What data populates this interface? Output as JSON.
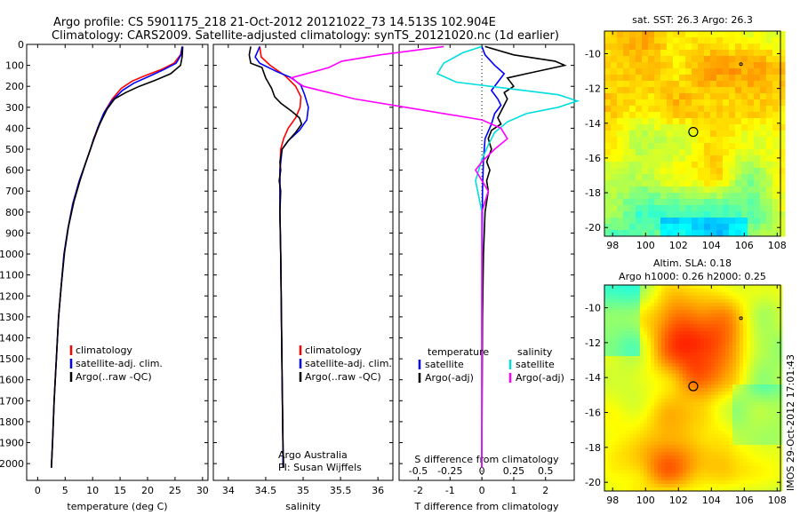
{
  "header": {
    "title_line1": "Argo profile: CS 5901175_218 21-Oct-2012 20121022_73 14.513S 102.904E",
    "title_line2": "Climatology: CARS2009. Satellite-adjusted climatology: synTS_20121020.nc (1d earlier)"
  },
  "colors": {
    "climatology": "#ff0000",
    "satellite": "#0000ff",
    "argo": "#000000",
    "sat_diff": "#00dddd",
    "argo_diff": "#ff00ff"
  },
  "watermark": "IMOS 29-Oct-2012 17:01:43",
  "chart_data": [
    {
      "type": "line",
      "name": "temperature-profile",
      "xlabel": "temperature (deg C)",
      "ylabel": "",
      "xlim": [
        -2,
        31
      ],
      "ylim": [
        2080,
        0
      ],
      "xticks": [
        0,
        5,
        10,
        15,
        20,
        25,
        30
      ],
      "yticks": [
        0,
        100,
        200,
        300,
        400,
        500,
        600,
        700,
        800,
        900,
        1000,
        1100,
        1200,
        1300,
        1400,
        1500,
        1600,
        1700,
        1800,
        1900,
        2000
      ],
      "legend": [
        "climatology",
        "satellite-adj. clim.",
        "Argo(..raw -QC)"
      ],
      "series": [
        {
          "name": "climatology",
          "color": "#ff0000",
          "points": [
            [
              26.3,
              10
            ],
            [
              26.0,
              50
            ],
            [
              24.8,
              90
            ],
            [
              22.5,
              120
            ],
            [
              19.5,
              150
            ],
            [
              17.2,
              175
            ],
            [
              15.2,
              210
            ],
            [
              13.6,
              260
            ],
            [
              12.2,
              320
            ],
            [
              11.0,
              400
            ],
            [
              10.0,
              470
            ],
            [
              8.8,
              560
            ],
            [
              7.6,
              650
            ],
            [
              6.4,
              760
            ],
            [
              5.5,
              880
            ],
            [
              4.8,
              1000
            ],
            [
              4.3,
              1150
            ],
            [
              3.8,
              1300
            ],
            [
              3.4,
              1500
            ],
            [
              3.0,
              1700
            ],
            [
              2.7,
              1900
            ],
            [
              2.5,
              2020
            ]
          ]
        },
        {
          "name": "satellite-adj. clim.",
          "color": "#0000ff",
          "points": [
            [
              26.3,
              10
            ],
            [
              26.1,
              50
            ],
            [
              25.2,
              90
            ],
            [
              23.0,
              120
            ],
            [
              20.5,
              150
            ],
            [
              17.5,
              185
            ],
            [
              15.4,
              220
            ],
            [
              13.5,
              270
            ],
            [
              12.0,
              330
            ],
            [
              10.9,
              400
            ],
            [
              10.0,
              470
            ],
            [
              8.8,
              560
            ],
            [
              7.6,
              650
            ],
            [
              6.4,
              760
            ],
            [
              5.5,
              880
            ],
            [
              4.8,
              1000
            ],
            [
              4.3,
              1150
            ],
            [
              3.8,
              1300
            ],
            [
              3.4,
              1500
            ],
            [
              3.0,
              1700
            ],
            [
              2.7,
              1900
            ],
            [
              2.5,
              2020
            ]
          ]
        },
        {
          "name": "Argo(..raw -QC)",
          "color": "#000000",
          "points": [
            [
              26.4,
              10
            ],
            [
              26.3,
              60
            ],
            [
              26.0,
              100
            ],
            [
              24.2,
              140
            ],
            [
              21.5,
              170
            ],
            [
              18.5,
              200
            ],
            [
              16.0,
              230
            ],
            [
              14.0,
              260
            ],
            [
              12.6,
              310
            ],
            [
              11.3,
              380
            ],
            [
              10.2,
              450
            ],
            [
              9.6,
              500
            ],
            [
              8.8,
              560
            ],
            [
              7.7,
              650
            ],
            [
              6.6,
              750
            ],
            [
              5.6,
              870
            ],
            [
              4.9,
              990
            ],
            [
              4.3,
              1150
            ],
            [
              3.8,
              1300
            ],
            [
              3.4,
              1500
            ],
            [
              3.0,
              1700
            ],
            [
              2.7,
              1900
            ],
            [
              2.5,
              2020
            ]
          ]
        }
      ],
      "annotations": []
    },
    {
      "type": "line",
      "name": "salinity-profile",
      "xlabel": "salinity",
      "ylabel": "",
      "xlim": [
        33.8,
        36.2
      ],
      "ylim": [
        2080,
        0
      ],
      "xticks": [
        34,
        34.5,
        35,
        35.5,
        36
      ],
      "legend": [
        "climatology",
        "satellite-adj. clim.",
        "Argo(..raw -QC)"
      ],
      "series": [
        {
          "name": "climatology",
          "color": "#ff0000",
          "points": [
            [
              34.42,
              10
            ],
            [
              34.44,
              60
            ],
            [
              34.56,
              100
            ],
            [
              34.76,
              150
            ],
            [
              34.9,
              200
            ],
            [
              34.97,
              250
            ],
            [
              34.96,
              300
            ],
            [
              34.9,
              350
            ],
            [
              34.8,
              400
            ],
            [
              34.74,
              450
            ],
            [
              34.7,
              500
            ],
            [
              34.69,
              600
            ],
            [
              34.69,
              800
            ],
            [
              34.7,
              1000
            ],
            [
              34.71,
              1300
            ],
            [
              34.72,
              1600
            ],
            [
              34.73,
              1900
            ],
            [
              34.73,
              2020
            ]
          ]
        },
        {
          "name": "satellite-adj. clim.",
          "color": "#0000ff",
          "points": [
            [
              34.42,
              10
            ],
            [
              34.36,
              60
            ],
            [
              34.42,
              90
            ],
            [
              34.65,
              130
            ],
            [
              34.85,
              160
            ],
            [
              34.97,
              195
            ],
            [
              35.02,
              240
            ],
            [
              35.07,
              300
            ],
            [
              35.05,
              360
            ],
            [
              34.95,
              410
            ],
            [
              34.8,
              460
            ],
            [
              34.72,
              500
            ],
            [
              34.69,
              600
            ],
            [
              34.69,
              800
            ],
            [
              34.7,
              1000
            ],
            [
              34.71,
              1300
            ],
            [
              34.72,
              1600
            ],
            [
              34.73,
              1900
            ],
            [
              34.73,
              2020
            ]
          ]
        },
        {
          "name": "Argo(..raw -QC)",
          "color": "#000000",
          "points": [
            [
              34.3,
              10
            ],
            [
              34.28,
              50
            ],
            [
              34.3,
              90
            ],
            [
              34.45,
              110
            ],
            [
              34.5,
              160
            ],
            [
              34.58,
              210
            ],
            [
              34.62,
              250
            ],
            [
              34.7,
              280
            ],
            [
              34.85,
              320
            ],
            [
              34.95,
              350
            ],
            [
              34.98,
              380
            ],
            [
              34.9,
              420
            ],
            [
              34.8,
              460
            ],
            [
              34.72,
              500
            ],
            [
              34.69,
              560
            ],
            [
              34.7,
              600
            ],
            [
              34.68,
              650
            ],
            [
              34.7,
              700
            ],
            [
              34.69,
              800
            ],
            [
              34.7,
              1000
            ],
            [
              34.71,
              1300
            ],
            [
              34.72,
              1600
            ],
            [
              34.73,
              1900
            ],
            [
              34.74,
              2020
            ]
          ]
        }
      ],
      "annotations": [
        "Argo Australia",
        "PI: Susan Wijffels"
      ]
    },
    {
      "type": "line",
      "name": "difference-profile",
      "xlabel": "T difference from climatology",
      "xlabel_top": "S difference from climatology",
      "xlim": [
        -2.6,
        2.9
      ],
      "ylim": [
        2080,
        0
      ],
      "xticks": [
        -2,
        -1,
        0,
        1,
        2
      ],
      "xticks_top": [
        -0.5,
        -0.25,
        0,
        0.25,
        0.5
      ],
      "xticks_top_labels": [
        "-0.5",
        "-0.25",
        "0",
        "0.25",
        "0.5"
      ],
      "legend_headers": [
        "temperature",
        "salinity"
      ],
      "legend": [
        "satellite",
        "Argo(-adj)",
        "satellite",
        "Argo(-adj)"
      ],
      "series": [
        {
          "name": "satellite",
          "group": "temperature",
          "color": "#0000ff",
          "points": [
            [
              0,
              10
            ],
            [
              0.1,
              50
            ],
            [
              0.4,
              100
            ],
            [
              0.7,
              140
            ],
            [
              0.5,
              180
            ],
            [
              0.3,
              220
            ],
            [
              0.5,
              260
            ],
            [
              0.6,
              290
            ],
            [
              0.4,
              330
            ],
            [
              0.3,
              380
            ],
            [
              0.1,
              450
            ],
            [
              0.05,
              550
            ],
            [
              0.02,
              700
            ],
            [
              0.01,
              900
            ],
            [
              0,
              1200
            ],
            [
              0,
              1500
            ],
            [
              0,
              1800
            ],
            [
              0,
              2020
            ]
          ]
        },
        {
          "name": "Argo(-adj)",
          "group": "temperature",
          "color": "#000000",
          "points": [
            [
              0.1,
              10
            ],
            [
              1.0,
              50
            ],
            [
              2.3,
              80
            ],
            [
              2.6,
              100
            ],
            [
              2.3,
              110
            ],
            [
              1.4,
              140
            ],
            [
              0.8,
              160
            ],
            [
              1.0,
              200
            ],
            [
              0.7,
              230
            ],
            [
              0.8,
              260
            ],
            [
              0.7,
              290
            ],
            [
              0.6,
              320
            ],
            [
              0.5,
              350
            ],
            [
              0.6,
              380
            ],
            [
              0.3,
              410
            ],
            [
              0.2,
              450
            ],
            [
              0.3,
              500
            ],
            [
              0.15,
              560
            ],
            [
              0.25,
              600
            ],
            [
              0.15,
              650
            ],
            [
              0.2,
              700
            ],
            [
              0.1,
              800
            ],
            [
              0.05,
              1000
            ],
            [
              0.02,
              1300
            ],
            [
              0.01,
              1600
            ],
            [
              0,
              1900
            ],
            [
              0,
              2020
            ]
          ]
        },
        {
          "name": "satellite",
          "group": "salinity",
          "color": "#00dddd",
          "points": [
            [
              0,
              10
            ],
            [
              -0.15,
              40
            ],
            [
              -0.3,
              90
            ],
            [
              -0.35,
              140
            ],
            [
              -0.2,
              180
            ],
            [
              0.2,
              210
            ],
            [
              0.6,
              240
            ],
            [
              0.75,
              270
            ],
            [
              0.6,
              300
            ],
            [
              0.35,
              330
            ],
            [
              0.2,
              370
            ],
            [
              0.1,
              420
            ],
            [
              0.05,
              480
            ],
            [
              0,
              550
            ],
            [
              -0.05,
              650
            ],
            [
              0,
              800
            ],
            [
              0,
              1000
            ],
            [
              0,
              1300
            ],
            [
              0,
              1600
            ],
            [
              0,
              1900
            ],
            [
              0,
              2020
            ]
          ]
        },
        {
          "name": "Argo(-adj)",
          "group": "salinity",
          "color": "#ff00ff",
          "points": [
            [
              -0.3,
              10
            ],
            [
              -0.8,
              50
            ],
            [
              -1.1,
              80
            ],
            [
              -1.2,
              110
            ],
            [
              -1.5,
              160
            ],
            [
              -1.4,
              200
            ],
            [
              -1.2,
              230
            ],
            [
              -1.0,
              260
            ],
            [
              -0.6,
              300
            ],
            [
              -0.3,
              330
            ],
            [
              0,
              360
            ],
            [
              0.15,
              400
            ],
            [
              0.2,
              450
            ],
            [
              0.1,
              500
            ],
            [
              0,
              560
            ],
            [
              -0.05,
              600
            ],
            [
              0.05,
              700
            ],
            [
              0,
              800
            ],
            [
              0,
              1000
            ],
            [
              0,
              1300
            ],
            [
              0,
              1600
            ],
            [
              0,
              1900
            ],
            [
              0,
              2020
            ]
          ]
        }
      ]
    },
    {
      "type": "heatmap",
      "name": "sst-map",
      "title": "sat. SST: 26.3 Argo: 26.3",
      "xlim": [
        97.5,
        108.2
      ],
      "ylim": [
        -20.5,
        -8.7
      ],
      "xticks": [
        98,
        100,
        102,
        104,
        106,
        108
      ],
      "yticks": [
        -10,
        -12,
        -14,
        -16,
        -18,
        -20
      ],
      "marker_circle": [
        102.9,
        -14.5
      ],
      "marker_small": [
        105.8,
        -10.6
      ]
    },
    {
      "type": "heatmap",
      "name": "sla-map",
      "title": "Altim. SLA: 0.18",
      "subtitle": "Argo h1000: 0.26 h2000: 0.25",
      "xlim": [
        97.5,
        108.2
      ],
      "ylim": [
        -20.5,
        -8.7
      ],
      "xticks": [
        98,
        100,
        102,
        104,
        106,
        108
      ],
      "yticks": [
        -10,
        -12,
        -14,
        -16,
        -18,
        -20
      ],
      "marker_circle": [
        102.9,
        -14.5
      ],
      "marker_small": [
        105.8,
        -10.6
      ]
    }
  ]
}
